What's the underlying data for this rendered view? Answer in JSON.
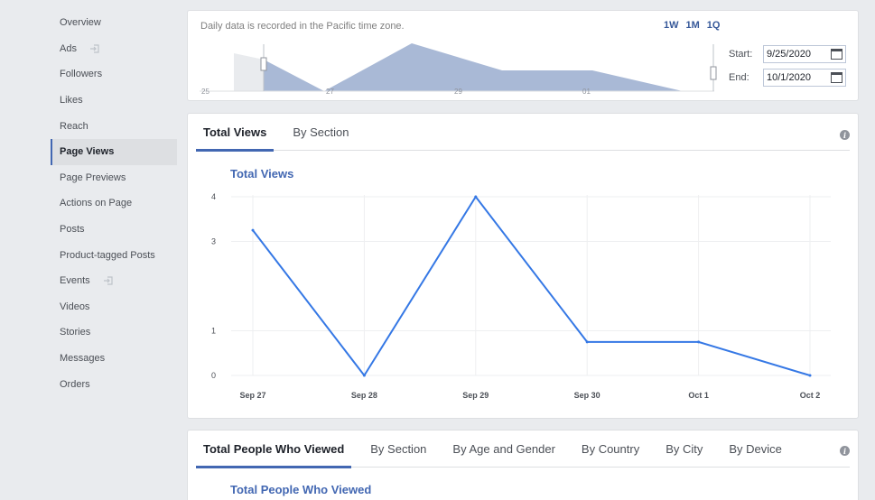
{
  "sidebar": {
    "items": [
      {
        "label": "Overview",
        "active": false,
        "external": false
      },
      {
        "label": "Ads",
        "active": false,
        "external": true
      },
      {
        "label": "Followers",
        "active": false,
        "external": false
      },
      {
        "label": "Likes",
        "active": false,
        "external": false
      },
      {
        "label": "Reach",
        "active": false,
        "external": false
      },
      {
        "label": "Page Views",
        "active": true,
        "external": false
      },
      {
        "label": "Page Previews",
        "active": false,
        "external": false
      },
      {
        "label": "Actions on Page",
        "active": false,
        "external": false
      },
      {
        "label": "Posts",
        "active": false,
        "external": false
      },
      {
        "label": "Product-tagged Posts",
        "active": false,
        "external": false
      },
      {
        "label": "Events",
        "active": false,
        "external": true
      },
      {
        "label": "Videos",
        "active": false,
        "external": false
      },
      {
        "label": "Stories",
        "active": false,
        "external": false
      },
      {
        "label": "Messages",
        "active": false,
        "external": false
      },
      {
        "label": "Orders",
        "active": false,
        "external": false
      }
    ]
  },
  "range": {
    "note": "Daily data is recorded in the Pacific time zone.",
    "buttons": [
      "1W",
      "1M",
      "1Q"
    ],
    "start_label": "Start:",
    "start_value": "9/25/2020",
    "end_label": "End:",
    "end_value": "10/1/2020",
    "mini_ticks": [
      "25",
      "27",
      "29",
      "01"
    ]
  },
  "views_panel": {
    "tabs": [
      {
        "label": "Total Views",
        "active": true
      },
      {
        "label": "By Section",
        "active": false
      }
    ],
    "chart_title": "Total Views",
    "info": "i"
  },
  "people_panel": {
    "tabs": [
      {
        "label": "Total People Who Viewed",
        "active": true
      },
      {
        "label": "By Section",
        "active": false
      },
      {
        "label": "By Age and Gender",
        "active": false
      },
      {
        "label": "By Country",
        "active": false
      },
      {
        "label": "By City",
        "active": false
      },
      {
        "label": "By Device",
        "active": false
      }
    ],
    "chart_title": "Total People Who Viewed",
    "info": "i"
  },
  "chart_data": {
    "type": "line",
    "categories": [
      "Sep 27",
      "Sep 28",
      "Sep 29",
      "Sep 30",
      "Oct 1",
      "Oct 2"
    ],
    "series": [
      {
        "values": [
          3.25,
          0,
          4,
          0.75,
          0.75,
          0
        ]
      }
    ],
    "y_ticks": [
      "0",
      "1",
      "3",
      "4"
    ],
    "ylim": [
      0,
      4
    ],
    "grid": true,
    "line_color": "#3578e5"
  },
  "colors": {
    "accent": "#4267b2",
    "mini_area": "#a9b9d6"
  }
}
